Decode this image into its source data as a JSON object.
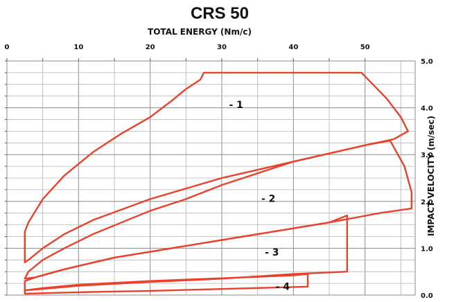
{
  "chart_data": {
    "type": "area",
    "title": "CRS 50",
    "xlabel": "TOTAL ENERGY (Nm/c)",
    "ylabel": "IMPACT VELOCITY  (m/sec)",
    "x_ticks": [
      "0",
      "10",
      "20",
      "30",
      "40",
      "50"
    ],
    "y_ticks": [
      "0.0",
      "1.0",
      "2.0",
      "3.0",
      "4.0",
      "5.0"
    ],
    "xlim": [
      0,
      57
    ],
    "ylim": [
      0,
      5
    ],
    "grid": true,
    "accent_color": "#e8412c",
    "series": [
      {
        "name": "- 1",
        "boundary": [
          [
            2.5,
            0.7
          ],
          [
            2.5,
            1.35
          ],
          [
            3,
            1.55
          ],
          [
            5,
            2.05
          ],
          [
            8,
            2.55
          ],
          [
            12,
            3.05
          ],
          [
            16,
            3.45
          ],
          [
            20,
            3.8
          ],
          [
            23,
            4.15
          ],
          [
            25,
            4.4
          ],
          [
            27,
            4.6
          ],
          [
            27.5,
            4.75
          ],
          [
            49.5,
            4.75
          ],
          [
            53,
            4.2
          ],
          [
            55,
            3.8
          ],
          [
            56,
            3.5
          ],
          [
            54,
            3.33
          ],
          [
            50,
            3.2
          ],
          [
            40,
            2.85
          ],
          [
            30,
            2.5
          ],
          [
            20,
            2.05
          ],
          [
            12,
            1.6
          ],
          [
            8,
            1.3
          ],
          [
            5,
            1.0
          ],
          [
            3,
            0.75
          ],
          [
            2.5,
            0.7
          ]
        ]
      },
      {
        "name": "- 2",
        "boundary": [
          [
            2.5,
            0.35
          ],
          [
            3,
            0.5
          ],
          [
            5,
            0.75
          ],
          [
            8,
            1.0
          ],
          [
            12,
            1.3
          ],
          [
            16,
            1.55
          ],
          [
            20,
            1.8
          ],
          [
            25,
            2.05
          ],
          [
            30,
            2.35
          ],
          [
            40,
            2.85
          ],
          [
            50,
            3.2
          ],
          [
            53.5,
            3.3
          ],
          [
            55.5,
            2.75
          ],
          [
            56.5,
            2.2
          ],
          [
            56.5,
            1.85
          ],
          [
            52,
            1.75
          ],
          [
            45,
            1.55
          ],
          [
            35,
            1.3
          ],
          [
            25,
            1.05
          ],
          [
            15,
            0.8
          ],
          [
            8,
            0.55
          ],
          [
            4,
            0.38
          ],
          [
            2.5,
            0.35
          ]
        ]
      },
      {
        "name": "- 3",
        "boundary": [
          [
            2.5,
            0.3
          ],
          [
            4,
            0.38
          ],
          [
            8,
            0.55
          ],
          [
            15,
            0.8
          ],
          [
            25,
            1.05
          ],
          [
            35,
            1.3
          ],
          [
            45,
            1.55
          ],
          [
            47.5,
            1.7
          ],
          [
            47.5,
            0.5
          ],
          [
            40,
            0.45
          ],
          [
            30,
            0.35
          ],
          [
            20,
            0.28
          ],
          [
            10,
            0.2
          ],
          [
            5,
            0.13
          ],
          [
            2.5,
            0.1
          ],
          [
            2.5,
            0.3
          ]
        ]
      },
      {
        "name": "- 4",
        "boundary": [
          [
            2.5,
            0.1
          ],
          [
            5,
            0.15
          ],
          [
            10,
            0.22
          ],
          [
            20,
            0.3
          ],
          [
            30,
            0.36
          ],
          [
            40,
            0.42
          ],
          [
            42,
            0.45
          ],
          [
            42,
            0.18
          ],
          [
            30,
            0.13
          ],
          [
            20,
            0.09
          ],
          [
            10,
            0.06
          ],
          [
            2.5,
            0.03
          ],
          [
            2.5,
            0.1
          ]
        ]
      }
    ],
    "label_positions": [
      {
        "name": "- 1",
        "x": 32,
        "y": 4.05
      },
      {
        "name": "- 2",
        "x": 36.5,
        "y": 2.05
      },
      {
        "name": "- 3",
        "x": 37,
        "y": 0.9
      },
      {
        "name": "- 4",
        "x": 38.5,
        "y": 0.17
      }
    ]
  }
}
